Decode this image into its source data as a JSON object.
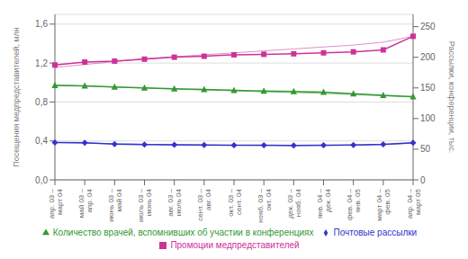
{
  "chart_data": {
    "type": "line",
    "categories": [
      "апр. 03 –\nмарт 04",
      "май 03 –\nапр. 04",
      "июнь 03 –\nмай 04",
      "июль 03 –\nиюнь 04",
      "авг. 03 –\nиюль 04",
      "сент. 03 –\nавг. 04",
      "окт. 03 –\nсент. 04",
      "нояб. 03 –\nокт. 04",
      "дек. 03 –\nнояб. 04",
      "янв. 04 –\nдек. 04",
      "фев. 04 –\nянв. 05",
      "март 04 –\nфев. 05",
      "апр. 04 –\nмарт 05"
    ],
    "series": [
      {
        "name": "Промоции медпредставителей",
        "color": "#cc3399",
        "marker": "square",
        "line_style": "solid",
        "values": [
          1.18,
          1.21,
          1.22,
          1.24,
          1.26,
          1.27,
          1.285,
          1.29,
          1.295,
          1.305,
          1.315,
          1.335,
          1.475
        ]
      },
      {
        "name": "Почтовые рассылки",
        "color": "#3333cc",
        "marker": "diamond",
        "line_style": "solid",
        "values": [
          0.383,
          0.38,
          0.368,
          0.363,
          0.36,
          0.358,
          0.356,
          0.355,
          0.354,
          0.355,
          0.358,
          0.365,
          0.382
        ]
      },
      {
        "name": "Количество врачей, вспомнивших об участии в конференциях",
        "color": "#339933",
        "marker": "triangle",
        "line_style": "solid",
        "values": [
          0.97,
          0.965,
          0.955,
          0.945,
          0.935,
          0.928,
          0.92,
          0.913,
          0.908,
          0.9,
          0.885,
          0.868,
          0.855
        ]
      },
      {
        "color": "#cc3399",
        "marker": "none",
        "line_style": "solid",
        "values": [
          1.155,
          1.185,
          1.215,
          1.245,
          1.265,
          1.285,
          1.305,
          1.325,
          1.345,
          1.365,
          1.385,
          1.415,
          1.475
        ]
      },
      {
        "color": "#3333cc",
        "marker": "none",
        "line_style": "solid",
        "values": [
          0.385,
          0.378,
          0.372,
          0.366,
          0.361,
          0.358,
          0.356,
          0.354,
          0.353,
          0.354,
          0.357,
          0.362,
          0.376
        ]
      },
      {
        "color": "#339933",
        "marker": "none",
        "line_style": "solid",
        "values": [
          0.975,
          0.964,
          0.953,
          0.943,
          0.933,
          0.923,
          0.914,
          0.905,
          0.896,
          0.888,
          0.876,
          0.863,
          0.851
        ]
      }
    ],
    "ylabel": "Посещения медпредставителей, млн",
    "y2label": "Рассылки, конференции, тыс.",
    "ylim": [
      0.0,
      1.7
    ],
    "yticks": [
      {
        "value": 0.0,
        "label": "0,0"
      },
      {
        "value": 0.4,
        "label": "0,4"
      },
      {
        "value": 0.8,
        "label": "0,8"
      },
      {
        "value": 1.2,
        "label": "1,2"
      },
      {
        "value": 1.6,
        "label": "1,6"
      }
    ],
    "y2lim": [
      0,
      270
    ],
    "y2ticks": [
      0,
      50,
      100,
      150,
      200,
      250
    ],
    "grid": true,
    "legend": "bottom"
  }
}
